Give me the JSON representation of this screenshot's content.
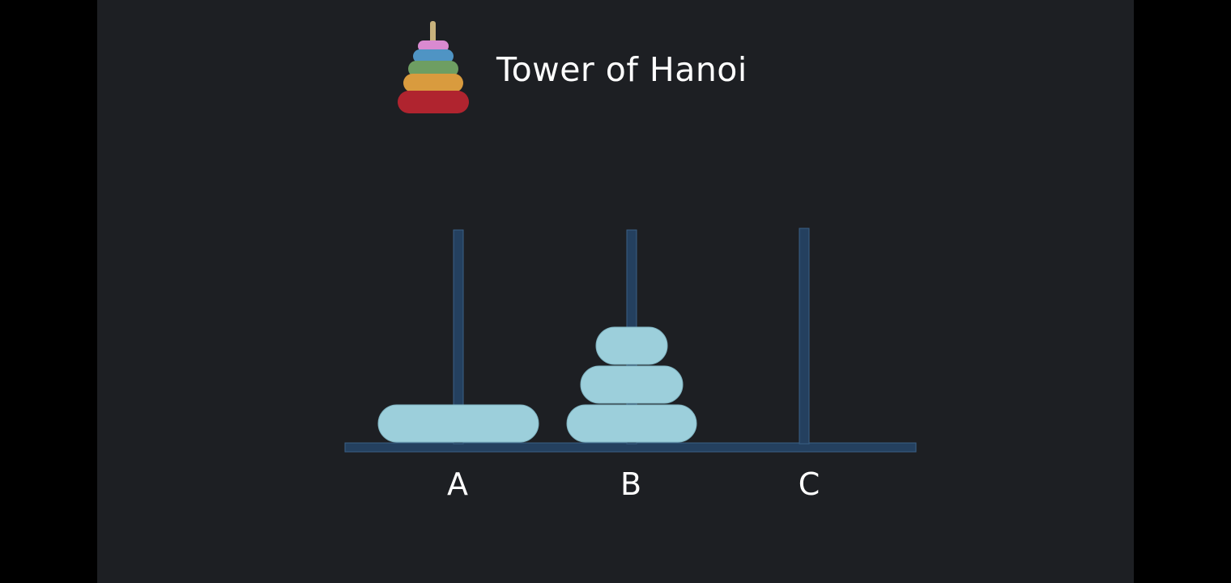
{
  "title": "Tower of Hanoi",
  "logo": {
    "icon": "tower-of-hanoi-logo-icon",
    "ring_colors": [
      "#d98ad0",
      "#4f94c4",
      "#6e9e62",
      "#d99b3e",
      "#b0242f"
    ],
    "pole_color": "#c8b27c"
  },
  "colors": {
    "background": "#1d1f23",
    "disk": "#9ccfdb",
    "disk_border": "#7fb3c1",
    "peg": "#24405f",
    "peg_border": "#3a5f84",
    "text": "#ffffff"
  },
  "pegs": [
    {
      "label": "A",
      "disks": [
        3
      ]
    },
    {
      "label": "B",
      "disks": [
        2,
        1,
        0
      ]
    },
    {
      "label": "C",
      "disks": []
    }
  ]
}
